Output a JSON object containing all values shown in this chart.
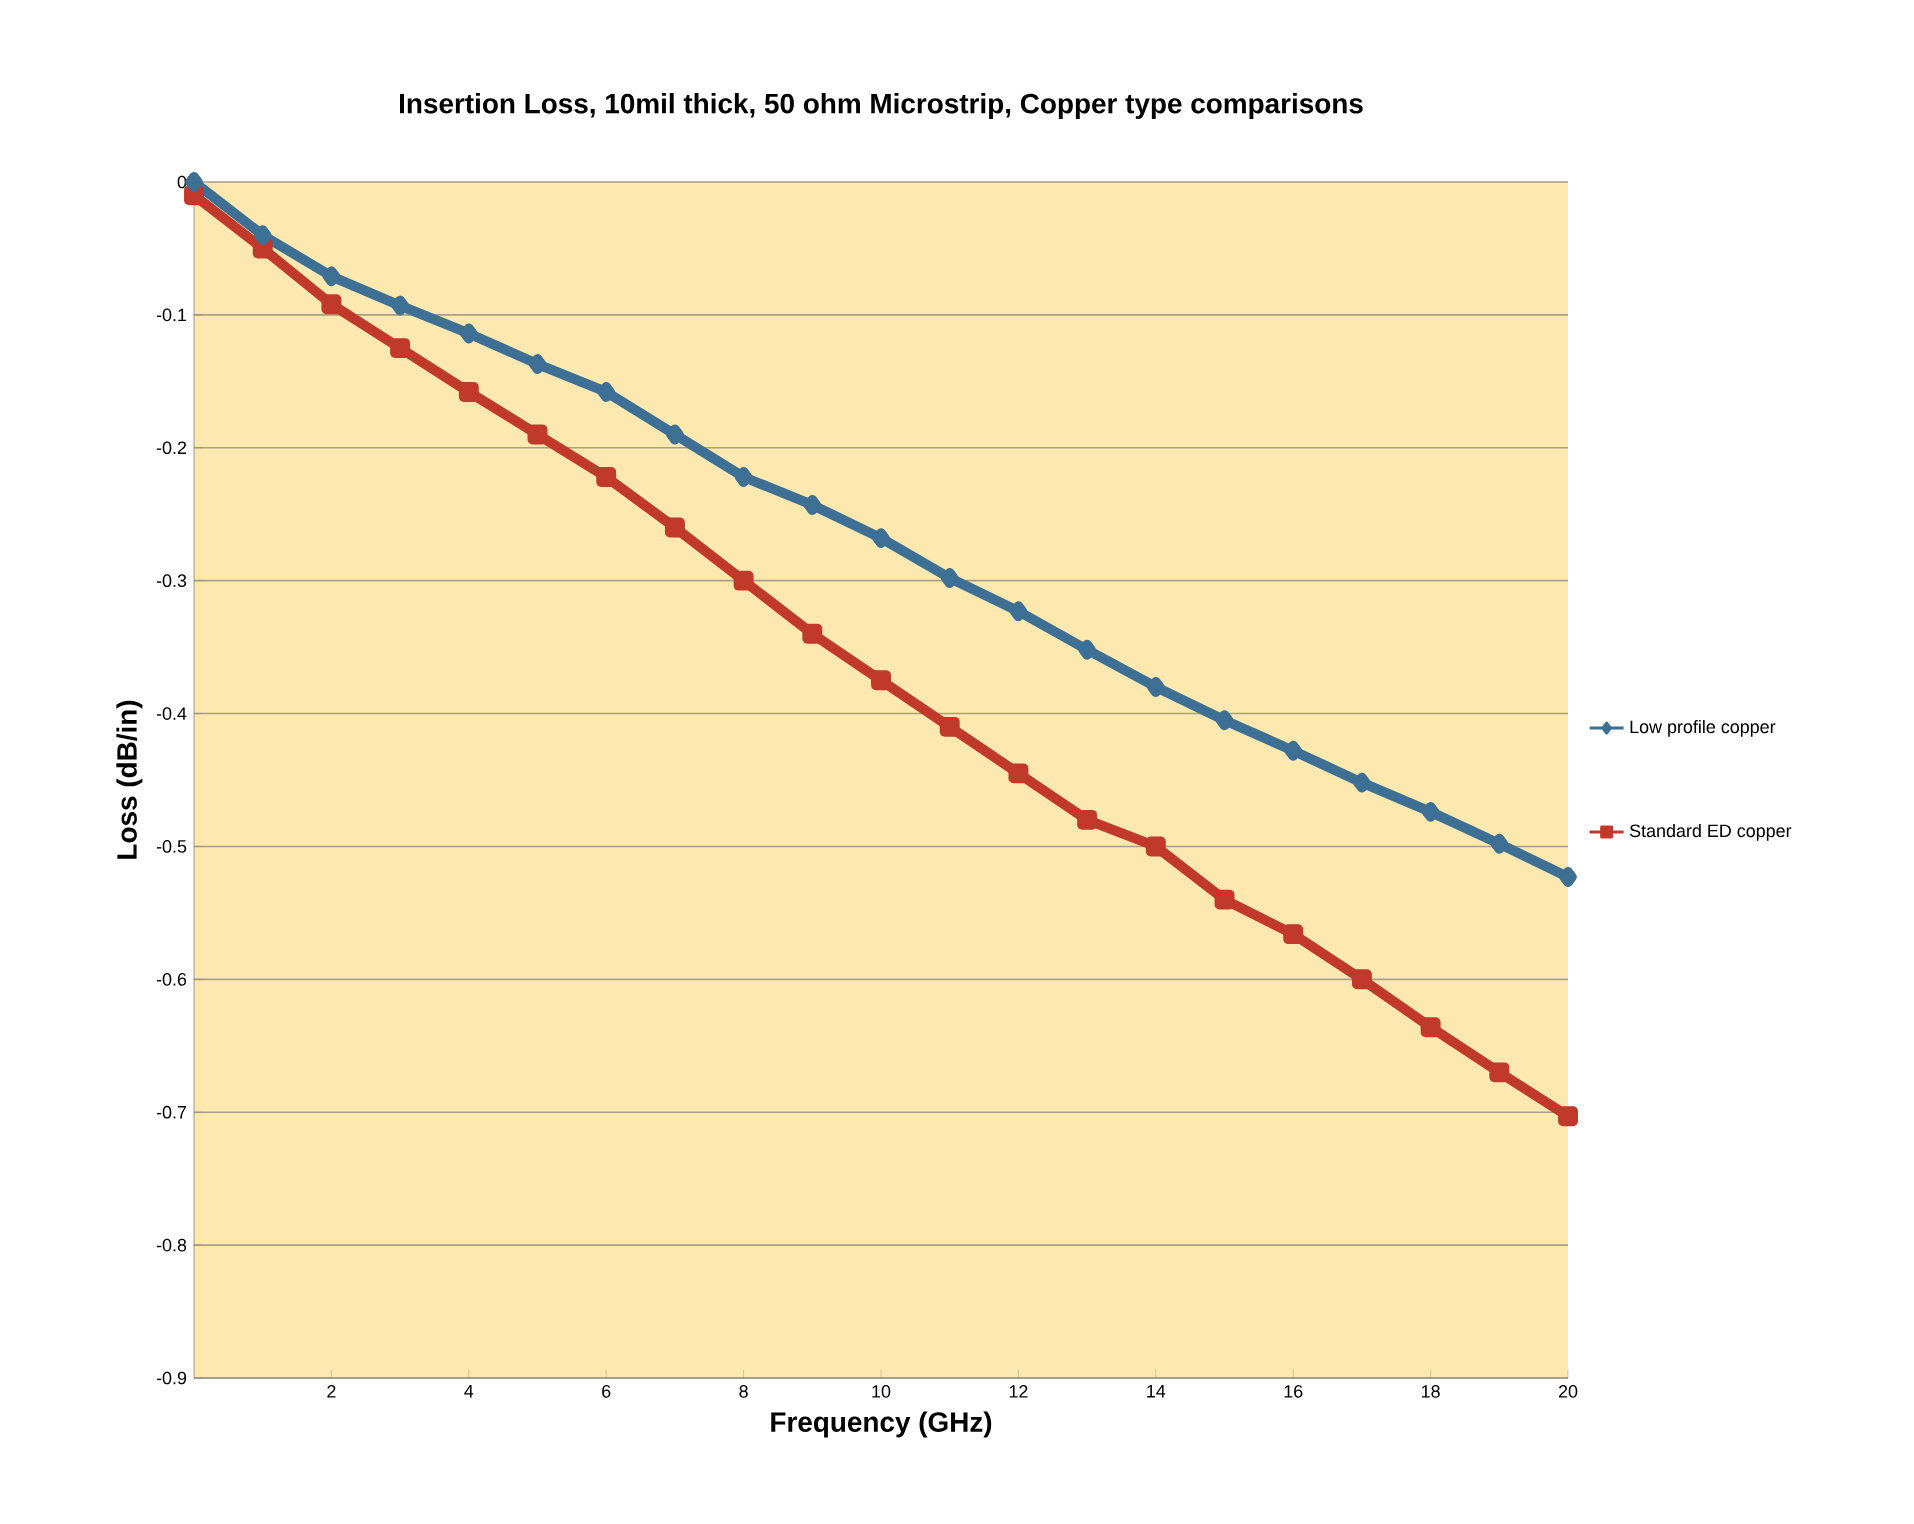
{
  "chart_data": {
    "type": "line",
    "title": "Insertion Loss, 10mil thick, 50 ohm Microstrip, Copper type comparisons",
    "xlabel": "Frequency (GHz)",
    "ylabel": "Loss (dB/in)",
    "x": [
      0,
      1,
      2,
      3,
      4,
      5,
      6,
      7,
      8,
      9,
      10,
      11,
      12,
      13,
      14,
      15,
      16,
      17,
      18,
      19,
      20
    ],
    "series": [
      {
        "name": "Low profile copper",
        "color": "#3e6f94",
        "marker": "diamond",
        "values": [
          0,
          -0.04,
          -0.071,
          -0.093,
          -0.114,
          -0.137,
          -0.158,
          -0.19,
          -0.222,
          -0.243,
          -0.268,
          -0.298,
          -0.323,
          -0.352,
          -0.38,
          -0.405,
          -0.428,
          -0.452,
          -0.474,
          -0.498,
          -0.523
        ]
      },
      {
        "name": "Standard ED copper",
        "color": "#c0392b",
        "marker": "square",
        "values": [
          -0.01,
          -0.05,
          -0.092,
          -0.125,
          -0.158,
          -0.19,
          -0.222,
          -0.26,
          -0.3,
          -0.34,
          -0.375,
          -0.41,
          -0.445,
          -0.48,
          -0.5,
          -0.54,
          -0.566,
          -0.6,
          -0.636,
          -0.67,
          -0.703
        ]
      }
    ],
    "xlim": [
      0,
      20
    ],
    "xticks": [
      2,
      4,
      6,
      8,
      10,
      12,
      14,
      16,
      18,
      20
    ],
    "ylim": [
      -0.9,
      0
    ],
    "yticks": [
      0,
      -0.1,
      -0.2,
      -0.3,
      -0.4,
      -0.5,
      -0.6,
      -0.7,
      -0.8,
      -0.9
    ],
    "grid": "y",
    "legend": "right",
    "line_style": "solid"
  }
}
